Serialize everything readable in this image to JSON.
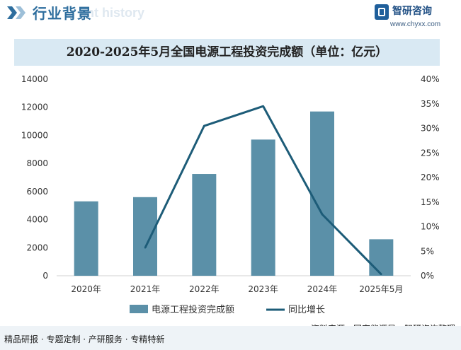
{
  "header": {
    "title": "行业背景",
    "ghost_text": "ent history"
  },
  "logo": {
    "name": "智研咨询",
    "url": "www.chyxx.com"
  },
  "footer": {
    "tagline": "精品研报 · 专题定制 · 产研服务 · 专精特新",
    "source": "资料来源：国家能源局、智研咨询整理"
  },
  "colors": {
    "bar": "#5b90a8",
    "line": "#1d5c78",
    "title_bar": "#d9e9f3"
  },
  "chart_data": {
    "type": "bar",
    "title": "2020-2025年5月全国电源工程投资完成额（单位：亿元）",
    "categories": [
      "2020年",
      "2021年",
      "2022年",
      "2023年",
      "2024年",
      "2025年5月"
    ],
    "series": [
      {
        "name": "电源工程投资完成额",
        "type": "bar",
        "axis": "left",
        "values": [
          5300,
          5600,
          7250,
          9700,
          11700,
          2600
        ]
      },
      {
        "name": "同比增长",
        "type": "line",
        "axis": "right",
        "values": [
          null,
          5.7,
          30.5,
          34.5,
          12.5,
          0.3
        ]
      }
    ],
    "ylim": [
      0,
      14000
    ],
    "yticks": [
      "0",
      "2000",
      "4000",
      "6000",
      "8000",
      "10000",
      "12000",
      "14000"
    ],
    "y2lim": [
      0,
      40
    ],
    "y2ticks": [
      "0%",
      "5%",
      "10%",
      "15%",
      "20%",
      "25%",
      "30%",
      "35%",
      "40%"
    ],
    "legend_position": "bottom",
    "grid": false
  }
}
